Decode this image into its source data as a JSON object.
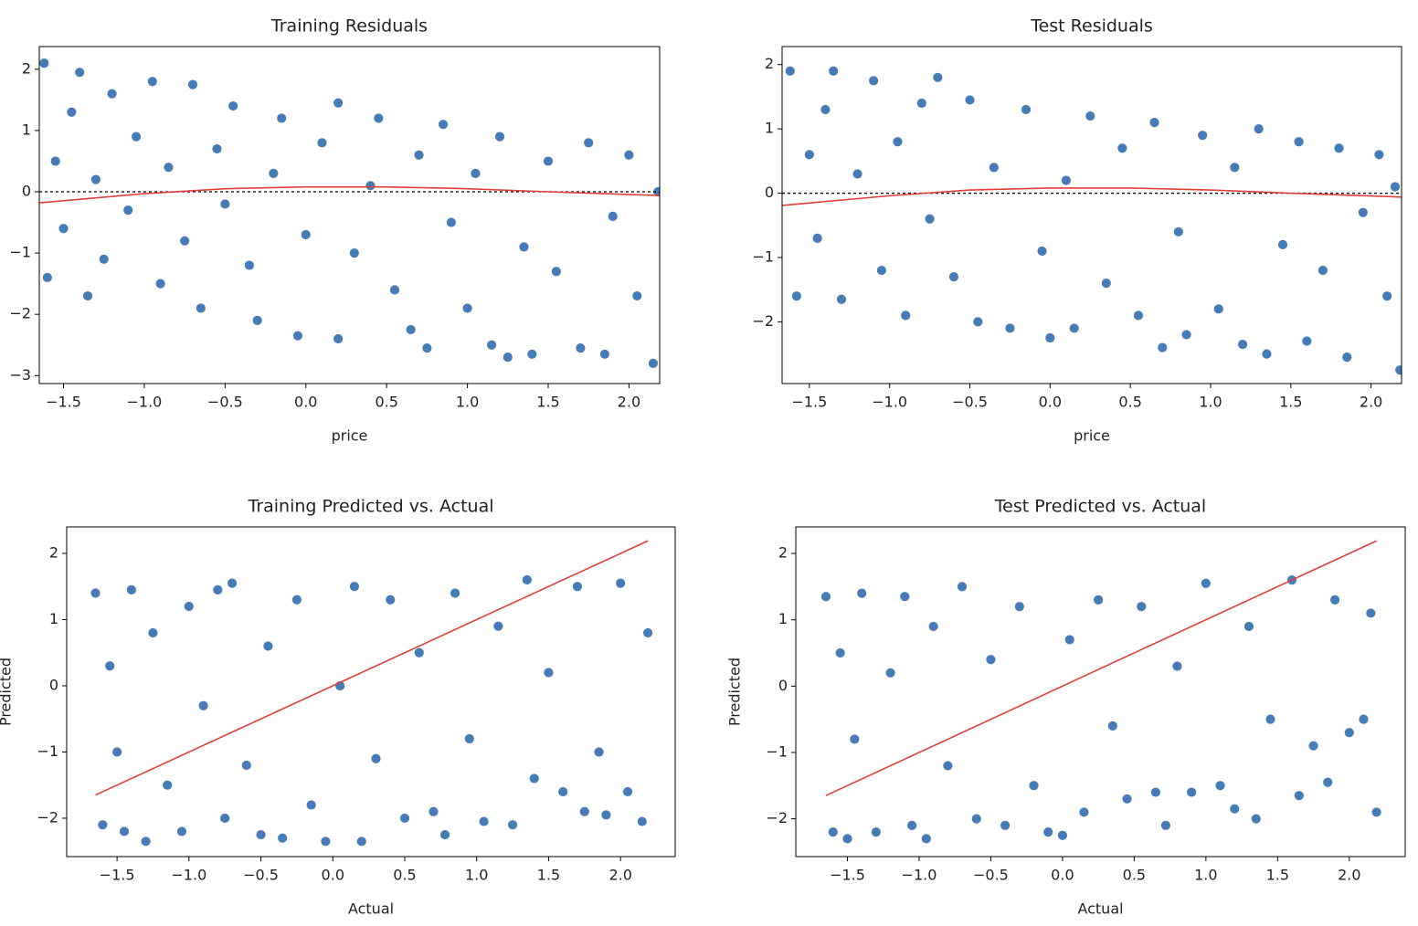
{
  "chart_data": [
    {
      "type": "scatter",
      "title": "Training Residuals",
      "xlabel": "price",
      "xlim": [
        -1.65,
        2.19
      ],
      "ylim": [
        -3.13,
        2.37
      ],
      "xticks": [
        {
          "value": -1.5,
          "label": "−1.5"
        },
        {
          "value": -1,
          "label": "−1.0"
        },
        {
          "value": -0.5,
          "label": "−0.5"
        },
        {
          "value": 0,
          "label": "0.0"
        },
        0.5,
        {
          "value": 1,
          "label": "1.0"
        },
        1.5,
        {
          "value": 2,
          "label": "2.0"
        }
      ],
      "yticks": [
        {
          "value": -3,
          "label": "−3"
        },
        {
          "value": -2,
          "label": "−2"
        },
        {
          "value": -1,
          "label": "−1"
        },
        0,
        1,
        2
      ],
      "color": "#3d76b3",
      "x": [
        -1.62,
        -1.6,
        -1.55,
        -1.5,
        -1.45,
        -1.4,
        -1.35,
        -1.3,
        -1.25,
        -1.2,
        -1.1,
        -1.05,
        -0.95,
        -0.9,
        -0.85,
        -0.75,
        -0.7,
        -0.65,
        -0.55,
        -0.5,
        -0.45,
        -0.35,
        -0.3,
        -0.2,
        -0.15,
        -0.05,
        0.0,
        0.1,
        0.2,
        0.2,
        0.3,
        0.4,
        0.45,
        0.55,
        0.65,
        0.7,
        0.75,
        0.85,
        0.9,
        1.0,
        1.05,
        1.15,
        1.2,
        1.25,
        1.35,
        1.4,
        1.5,
        1.55,
        1.7,
        1.75,
        1.85,
        1.9,
        2.0,
        2.05,
        2.15,
        2.18
      ],
      "y": [
        2.1,
        -1.4,
        0.5,
        -0.6,
        1.3,
        1.95,
        -1.7,
        0.2,
        -1.1,
        1.6,
        -0.3,
        0.9,
        1.8,
        -1.5,
        0.4,
        -0.8,
        1.75,
        -1.9,
        0.7,
        -0.2,
        1.4,
        -1.2,
        -2.1,
        0.3,
        1.2,
        -2.35,
        -0.7,
        0.8,
        1.45,
        -2.4,
        -1.0,
        0.1,
        1.2,
        -1.6,
        -2.25,
        0.6,
        -2.55,
        1.1,
        -0.5,
        -1.9,
        0.3,
        -2.5,
        0.9,
        -2.7,
        -0.9,
        -2.65,
        0.5,
        -1.3,
        -2.55,
        0.8,
        -2.65,
        -0.4,
        0.6,
        -1.7,
        -2.8,
        0.0
      ],
      "reference_line": 0,
      "fit_line": {
        "color": "#e0403a",
        "x": [
          -1.65,
          -1.0,
          -0.5,
          0.0,
          0.5,
          1.0,
          1.5,
          2.19
        ],
        "y": [
          -0.18,
          -0.03,
          0.05,
          0.08,
          0.08,
          0.05,
          0.0,
          -0.06
        ]
      }
    },
    {
      "type": "scatter",
      "title": "Test Residuals",
      "xlabel": "price",
      "xlim": [
        -1.67,
        2.19
      ],
      "ylim": [
        -2.96,
        2.28
      ],
      "xticks": [
        {
          "value": -1.5,
          "label": "−1.5"
        },
        {
          "value": -1,
          "label": "−1.0"
        },
        {
          "value": -0.5,
          "label": "−0.5"
        },
        {
          "value": 0,
          "label": "0.0"
        },
        0.5,
        {
          "value": 1,
          "label": "1.0"
        },
        1.5,
        {
          "value": 2,
          "label": "2.0"
        }
      ],
      "yticks": [
        {
          "value": -2,
          "label": "−2"
        },
        {
          "value": -1,
          "label": "−1"
        },
        0,
        1,
        2
      ],
      "color": "#3d76b3",
      "x": [
        -1.62,
        -1.58,
        -1.5,
        -1.45,
        -1.4,
        -1.35,
        -1.3,
        -1.2,
        -1.1,
        -1.05,
        -0.95,
        -0.9,
        -0.8,
        -0.75,
        -0.7,
        -0.6,
        -0.5,
        -0.45,
        -0.35,
        -0.25,
        -0.15,
        -0.05,
        0.0,
        0.1,
        0.15,
        0.25,
        0.35,
        0.45,
        0.55,
        0.65,
        0.7,
        0.8,
        0.85,
        0.95,
        1.05,
        1.15,
        1.2,
        1.3,
        1.35,
        1.45,
        1.55,
        1.6,
        1.7,
        1.8,
        1.85,
        1.95,
        2.05,
        2.1,
        2.18,
        2.15
      ],
      "y": [
        1.9,
        -1.6,
        0.6,
        -0.7,
        1.3,
        1.9,
        -1.65,
        0.3,
        1.75,
        -1.2,
        0.8,
        -1.9,
        1.4,
        -0.4,
        1.8,
        -1.3,
        1.45,
        -2.0,
        0.4,
        -2.1,
        1.3,
        -0.9,
        -2.25,
        0.2,
        -2.1,
        1.2,
        -1.4,
        0.7,
        -1.9,
        1.1,
        -2.4,
        -0.6,
        -2.2,
        0.9,
        -1.8,
        0.4,
        -2.35,
        1.0,
        -2.5,
        -0.8,
        0.8,
        -2.3,
        -1.2,
        0.7,
        -2.55,
        -0.3,
        0.6,
        -1.6,
        -2.75,
        0.1
      ],
      "reference_line": 0,
      "fit_line": {
        "color": "#e0403a",
        "x": [
          -1.67,
          -1.0,
          -0.5,
          0.0,
          0.5,
          1.0,
          1.5,
          2.19
        ],
        "y": [
          -0.19,
          -0.04,
          0.05,
          0.08,
          0.08,
          0.05,
          0.0,
          -0.06
        ]
      }
    },
    {
      "type": "scatter",
      "title": "Training Predicted vs. Actual",
      "xlabel": "Actual",
      "ylabel": "Predicted",
      "xlim": [
        -1.85,
        2.38
      ],
      "ylim": [
        -2.58,
        2.4
      ],
      "xticks": [
        {
          "value": -1.5,
          "label": "−1.5"
        },
        {
          "value": -1,
          "label": "−1.0"
        },
        {
          "value": -0.5,
          "label": "−0.5"
        },
        {
          "value": 0,
          "label": "0.0"
        },
        0.5,
        {
          "value": 1,
          "label": "1.0"
        },
        1.5,
        {
          "value": 2,
          "label": "2.0"
        }
      ],
      "yticks": [
        {
          "value": -2,
          "label": "−2"
        },
        {
          "value": -1,
          "label": "−1"
        },
        0,
        1,
        2
      ],
      "color": "#3d76b3",
      "x": [
        -1.65,
        -1.6,
        -1.55,
        -1.5,
        -1.45,
        -1.4,
        -1.3,
        -1.25,
        -1.15,
        -1.05,
        -1.0,
        -0.9,
        -0.8,
        -0.75,
        -0.7,
        -0.6,
        -0.5,
        -0.45,
        -0.35,
        -0.25,
        -0.15,
        -0.05,
        0.05,
        0.15,
        0.2,
        0.3,
        0.4,
        0.5,
        0.6,
        0.7,
        0.78,
        0.85,
        0.95,
        1.05,
        1.15,
        1.25,
        1.35,
        1.4,
        1.5,
        1.6,
        1.7,
        1.75,
        1.85,
        1.9,
        2.0,
        2.05,
        2.15,
        2.19
      ],
      "y": [
        1.4,
        -2.1,
        0.3,
        -1.0,
        -2.2,
        1.45,
        -2.35,
        0.8,
        -1.5,
        -2.2,
        1.2,
        -0.3,
        1.45,
        -2.0,
        1.55,
        -1.2,
        -2.25,
        0.6,
        -2.3,
        1.3,
        -1.8,
        -2.35,
        0.0,
        1.5,
        -2.35,
        -1.1,
        1.3,
        -2.0,
        0.5,
        -1.9,
        -2.25,
        1.4,
        -0.8,
        -2.05,
        0.9,
        -2.1,
        1.6,
        -1.4,
        0.2,
        -1.6,
        1.5,
        -1.9,
        -1.0,
        -1.95,
        1.55,
        -1.6,
        -2.05,
        0.8
      ],
      "fit_line": {
        "color": "#e0403a",
        "x": [
          -1.65,
          2.19
        ],
        "y": [
          -1.65,
          2.19
        ]
      }
    },
    {
      "type": "scatter",
      "title": "Test Predicted vs. Actual",
      "xlabel": "Actual",
      "ylabel": "Predicted",
      "xlim": [
        -1.86,
        2.39
      ],
      "ylim": [
        -2.57,
        2.4
      ],
      "xticks": [
        {
          "value": -1.5,
          "label": "−1.5"
        },
        {
          "value": -1,
          "label": "−1.0"
        },
        {
          "value": -0.5,
          "label": "−0.5"
        },
        {
          "value": 0,
          "label": "0.0"
        },
        0.5,
        {
          "value": 1,
          "label": "1.0"
        },
        1.5,
        {
          "value": 2,
          "label": "2.0"
        }
      ],
      "yticks": [
        {
          "value": -2,
          "label": "−2"
        },
        {
          "value": -1,
          "label": "−1"
        },
        0,
        1,
        2
      ],
      "color": "#3d76b3",
      "x": [
        -1.65,
        -1.6,
        -1.55,
        -1.5,
        -1.45,
        -1.4,
        -1.3,
        -1.2,
        -1.1,
        -1.05,
        -0.95,
        -0.9,
        -0.8,
        -0.7,
        -0.6,
        -0.5,
        -0.4,
        -0.3,
        -0.2,
        -0.1,
        0.0,
        0.05,
        0.15,
        0.25,
        0.35,
        0.45,
        0.55,
        0.65,
        0.72,
        0.8,
        0.9,
        1.0,
        1.1,
        1.2,
        1.3,
        1.35,
        1.45,
        1.6,
        1.65,
        1.75,
        1.85,
        1.9,
        2.0,
        2.1,
        2.19,
        2.15
      ],
      "y": [
        1.35,
        -2.2,
        0.5,
        -2.3,
        -0.8,
        1.4,
        -2.2,
        0.2,
        1.35,
        -2.1,
        -2.3,
        0.9,
        -1.2,
        1.5,
        -2.0,
        0.4,
        -2.1,
        1.2,
        -1.5,
        -2.2,
        -2.25,
        0.7,
        -1.9,
        1.3,
        -0.6,
        -1.7,
        1.2,
        -1.6,
        -2.1,
        0.3,
        -1.6,
        1.55,
        -1.5,
        -1.85,
        0.9,
        -2.0,
        -0.5,
        1.6,
        -1.65,
        -0.9,
        -1.45,
        1.3,
        -0.7,
        -0.5,
        -1.9,
        1.1
      ],
      "fit_line": {
        "color": "#e0403a",
        "x": [
          -1.65,
          2.19
        ],
        "y": [
          -1.65,
          2.19
        ]
      }
    }
  ]
}
